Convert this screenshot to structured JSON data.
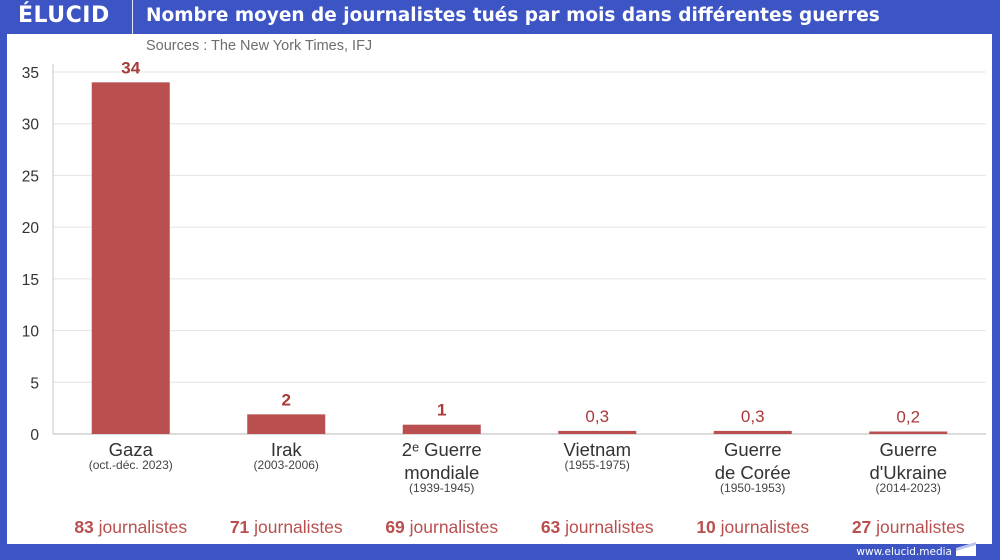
{
  "header": {
    "logo": "ÉLUCID",
    "title": "Nombre moyen de journalistes tués par mois dans différentes guerres"
  },
  "source": "Sources : The New York Times, IFJ",
  "footer": {
    "url": "www.elucid.media"
  },
  "colors": {
    "frame": "#3d55c4",
    "bar": "#b94f4f",
    "value_label": "#a83a3a",
    "count_label": "#b94f4f",
    "category_label": "#333333",
    "period_label": "#444444",
    "axis_label": "#333333",
    "grid": "#e4e4e4"
  },
  "chart_data": {
    "type": "bar",
    "title": "Nombre moyen de journalistes tués par mois dans différentes guerres",
    "subtitle": "Sources : The New York Times, IFJ",
    "xlabel": "",
    "ylabel": "",
    "ylim": [
      0,
      35
    ],
    "yticks": [
      0,
      5,
      10,
      15,
      20,
      25,
      30,
      35
    ],
    "grid": true,
    "legend": "none",
    "categories": [
      {
        "name_lines": [
          "Gaza"
        ],
        "period": "(oct.-déc. 2023)",
        "total_number": "83",
        "total_unit": " journalistes"
      },
      {
        "name_lines": [
          "Irak"
        ],
        "period": "(2003-2006)",
        "total_number": "71",
        "total_unit": " journalistes"
      },
      {
        "name_lines": [
          "2ᵉ Guerre",
          "mondiale"
        ],
        "period": "(1939-1945)",
        "total_number": "69",
        "total_unit": " journalistes"
      },
      {
        "name_lines": [
          "Vietnam"
        ],
        "period": "(1955-1975)",
        "total_number": "63",
        "total_unit": " journalistes"
      },
      {
        "name_lines": [
          "Guerre",
          "de Corée"
        ],
        "period": "(1950-1953)",
        "total_number": "10",
        "total_unit": " journalistes"
      },
      {
        "name_lines": [
          "Guerre",
          "d'Ukraine"
        ],
        "period": "(2014-2023)",
        "total_number": "27",
        "total_unit": " journalistes"
      }
    ],
    "values": [
      34,
      1.9,
      0.9,
      0.3,
      0.3,
      0.2
    ],
    "value_labels": [
      "34",
      "2",
      "1",
      "0,3",
      "0,3",
      "0,2"
    ]
  }
}
